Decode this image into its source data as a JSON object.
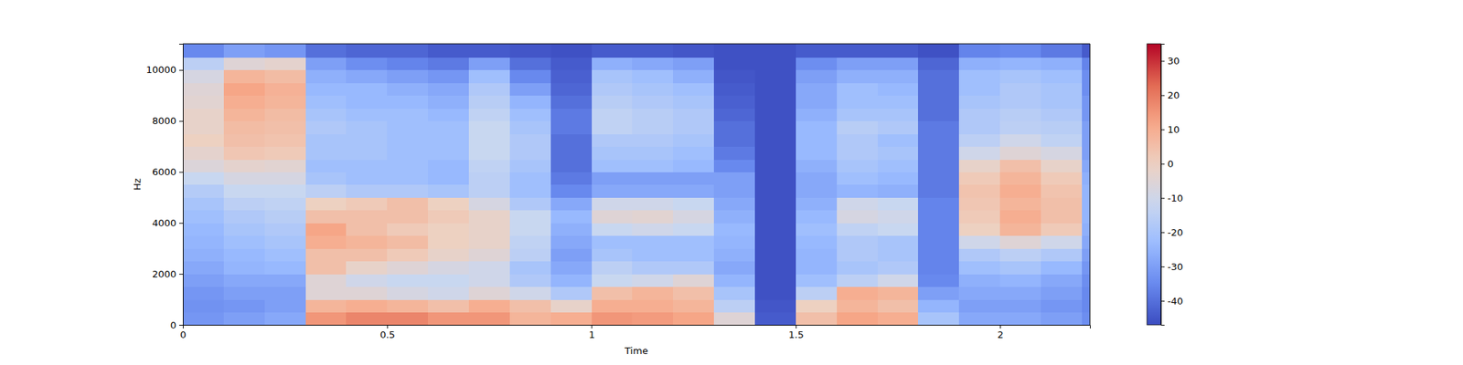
{
  "chart_data": {
    "type": "heatmap",
    "x_label": "Time",
    "y_label": "Hz",
    "xlim": [
      0,
      2.22
    ],
    "ylim": [
      0,
      11025
    ],
    "xticks": [
      0,
      0.5,
      1,
      1.5,
      2
    ],
    "yticks": [
      0,
      2000,
      4000,
      6000,
      8000,
      10000
    ],
    "x": [
      0,
      0.1,
      0.2,
      0.3,
      0.4,
      0.5,
      0.6,
      0.7,
      0.8,
      0.9,
      1.0,
      1.1,
      1.2,
      1.3,
      1.4,
      1.5,
      1.6,
      1.7,
      1.8,
      1.9,
      2.0,
      2.1,
      2.2,
      2.22
    ],
    "y": [
      0,
      500,
      1000,
      1500,
      2000,
      2500,
      3000,
      3500,
      4000,
      4500,
      5000,
      5500,
      6000,
      6500,
      7000,
      7500,
      8000,
      8500,
      9000,
      9500,
      10000,
      10500,
      11025
    ],
    "z": [
      [
        -32,
        -33,
        -32,
        -30,
        -28,
        -26,
        -25,
        -24,
        -22,
        -20,
        -17,
        -12,
        -6,
        -3,
        0,
        -2,
        -2,
        -4,
        -5,
        -8,
        -15,
        -35
      ],
      [
        -30,
        -32,
        -30,
        -28,
        -25,
        -24,
        -22,
        -20,
        -18,
        -15,
        -12,
        -8,
        -3,
        3,
        5,
        6,
        8,
        10,
        12,
        8,
        -5,
        -30
      ],
      [
        -28,
        -30,
        -30,
        -28,
        -24,
        -22,
        -20,
        -18,
        -16,
        -14,
        -12,
        -8,
        -4,
        2,
        4,
        5,
        6,
        8,
        9,
        6,
        -3,
        -32
      ],
      [
        15,
        8,
        -5,
        -5,
        5,
        5,
        10,
        12,
        5,
        0,
        -15,
        -20,
        -22,
        -20,
        -20,
        -18,
        -20,
        -22,
        -24,
        -26,
        -30,
        -40
      ],
      [
        18,
        10,
        -5,
        -10,
        -2,
        5,
        8,
        5,
        5,
        2,
        -18,
        -22,
        -22,
        -20,
        -20,
        -20,
        -22,
        -24,
        -24,
        -28,
        -34,
        -42
      ],
      [
        18,
        8,
        -8,
        -12,
        -5,
        2,
        6,
        2,
        5,
        5,
        -18,
        -22,
        -22,
        -22,
        -22,
        -22,
        -22,
        -24,
        -26,
        -30,
        -36,
        -42
      ],
      [
        15,
        5,
        -10,
        -12,
        -8,
        -2,
        0,
        0,
        2,
        0,
        -20,
        -24,
        -24,
        -22,
        -22,
        -22,
        -24,
        -26,
        -28,
        -32,
        -38,
        -44
      ],
      [
        15,
        10,
        -5,
        -10,
        -10,
        -5,
        -2,
        -2,
        -2,
        -8,
        -15,
        -15,
        -14,
        -12,
        -12,
        -12,
        -14,
        -16,
        -18,
        -22,
        -30,
        -44
      ],
      [
        8,
        5,
        -10,
        -18,
        -20,
        -15,
        -14,
        -12,
        -12,
        -18,
        -22,
        -22,
        -20,
        -18,
        -18,
        -20,
        -22,
        -25,
        -30,
        -35,
        -40,
        -45
      ],
      [
        10,
        -2,
        -18,
        -25,
        -28,
        -30,
        -28,
        -26,
        -24,
        -28,
        -35,
        -38,
        -40,
        -40,
        -40,
        -38,
        -38,
        -40,
        -42,
        -43,
        -44,
        -46
      ],
      [
        15,
        10,
        5,
        -12,
        -15,
        -20,
        -22,
        -12,
        -5,
        -10,
        -28,
        -30,
        -22,
        -20,
        -18,
        -14,
        -14,
        -16,
        -18,
        -20,
        -26,
        -44
      ],
      [
        14,
        10,
        8,
        -10,
        -18,
        -22,
        -22,
        -10,
        -4,
        -10,
        -28,
        -30,
        -22,
        -20,
        -18,
        -16,
        -16,
        -18,
        -20,
        -22,
        -28,
        -44
      ],
      [
        12,
        8,
        5,
        -5,
        -18,
        -22,
        -22,
        -12,
        -8,
        -12,
        -28,
        -30,
        -24,
        -22,
        -20,
        -18,
        -18,
        -20,
        -22,
        -26,
        -30,
        -45
      ],
      [
        -5,
        -15,
        -20,
        -25,
        -28,
        -26,
        -25,
        -24,
        -26,
        -28,
        -30,
        -30,
        -35,
        -38,
        -40,
        -40,
        -42,
        -43,
        -44,
        -45,
        -46,
        -46
      ],
      [
        -44,
        -45,
        -46,
        -46,
        -46,
        -46,
        -46,
        -46,
        -46,
        -46,
        -46,
        -46,
        -46,
        -46,
        -46,
        -46,
        -46,
        -46,
        -46,
        -46,
        -46,
        -46
      ],
      [
        5,
        0,
        -15,
        -22,
        -25,
        -25,
        -24,
        -22,
        -24,
        -26,
        -28,
        -28,
        -26,
        -24,
        -24,
        -24,
        -26,
        -28,
        -28,
        -30,
        -34,
        -44
      ],
      [
        12,
        8,
        10,
        -15,
        -20,
        -18,
        -18,
        -14,
        -8,
        -10,
        -25,
        -22,
        -20,
        -18,
        -18,
        -16,
        -20,
        -22,
        -22,
        -26,
        -30,
        -44
      ],
      [
        10,
        5,
        8,
        -10,
        -18,
        -20,
        -20,
        -12,
        -10,
        -12,
        -26,
        -24,
        -22,
        -20,
        -22,
        -18,
        -20,
        -22,
        -24,
        -26,
        -30,
        -44
      ],
      [
        -20,
        -25,
        -30,
        -35,
        -36,
        -36,
        -36,
        -36,
        -36,
        -36,
        -38,
        -38,
        -38,
        -38,
        -38,
        -38,
        -40,
        -40,
        -40,
        -40,
        -42,
        -46
      ],
      [
        -28,
        -30,
        -28,
        -26,
        -22,
        -18,
        -10,
        0,
        2,
        3,
        4,
        2,
        -2,
        -10,
        -15,
        -18,
        -18,
        -20,
        -22,
        -22,
        -26,
        -36
      ],
      [
        -28,
        -30,
        -28,
        -25,
        -20,
        -15,
        -5,
        8,
        10,
        8,
        10,
        8,
        5,
        -5,
        -10,
        -15,
        -16,
        -18,
        -18,
        -20,
        -25,
        -35
      ],
      [
        -30,
        -32,
        -30,
        -28,
        -24,
        -18,
        -10,
        2,
        5,
        5,
        4,
        2,
        -2,
        -8,
        -14,
        -16,
        -18,
        -20,
        -20,
        -22,
        -26,
        -38
      ],
      [
        -34,
        -35,
        -35,
        -34,
        -32,
        -30,
        -28,
        -26,
        -25,
        -25,
        -25,
        -26,
        -28,
        -30,
        -30,
        -30,
        -32,
        -32,
        -34,
        -34,
        -36,
        -44
      ]
    ],
    "colorbar_range": [
      -47,
      35
    ],
    "colorbar_ticks": [
      -40,
      -30,
      -20,
      -10,
      0,
      10,
      20,
      30
    ]
  }
}
